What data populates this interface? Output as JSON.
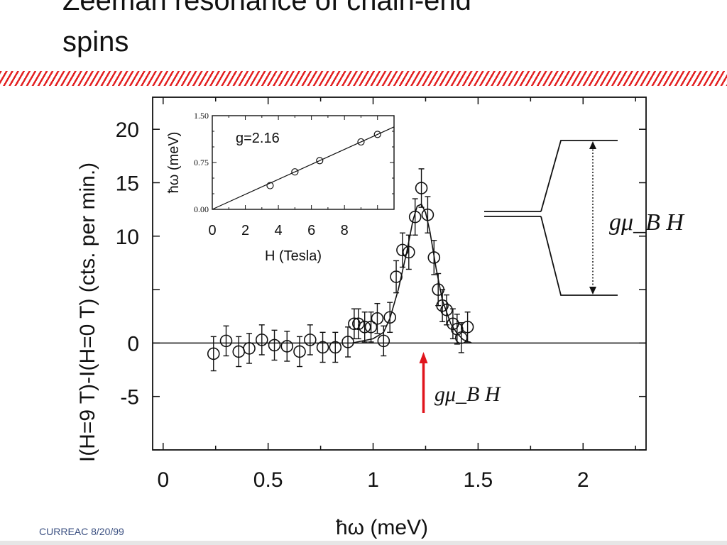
{
  "slide": {
    "title_line1": "Zeeman resonance of chain-end",
    "title_line2": "spins",
    "footer": "CURREAC 8/20/99"
  },
  "colors": {
    "hatch": "#e32121",
    "arrow": "#e0141c",
    "ink": "#111111"
  },
  "chart_data": [
    {
      "type": "scatter",
      "xlabel": "ħω    (meV)",
      "ylabel": "I(H=9 T)-I(H=0 T)   (cts. per min.)",
      "xlim": [
        -0.05,
        2.3
      ],
      "ylim": [
        -10,
        23
      ],
      "xticks": [
        0,
        0.5,
        1,
        1.5,
        2
      ],
      "xtick_labels": [
        "0",
        "0.5",
        "1",
        "1.5",
        "2"
      ],
      "yticks": [
        -5,
        0,
        10,
        15,
        20
      ],
      "ytick_labels": [
        "-5",
        "0",
        "10",
        "15",
        "20"
      ],
      "baseline": 0,
      "series": [
        {
          "style": "open-circles-with-error-bars",
          "x": [
            0.24,
            0.3,
            0.36,
            0.41,
            0.47,
            0.53,
            0.59,
            0.65,
            0.7,
            0.76,
            0.82,
            0.88,
            0.91,
            0.93,
            0.96,
            0.99,
            1.02,
            1.05,
            1.08,
            1.11,
            1.14,
            1.17,
            1.2,
            1.23,
            1.26,
            1.29,
            1.31,
            1.33,
            1.35,
            1.38,
            1.4,
            1.42,
            1.45
          ],
          "y": [
            -1,
            0.2,
            -0.8,
            -0.5,
            0.3,
            -0.2,
            -0.3,
            -0.8,
            0.3,
            -0.4,
            -0.4,
            0.1,
            1.8,
            1.8,
            1.5,
            1.5,
            2.3,
            0.2,
            2.4,
            6.2,
            8.7,
            8.5,
            11.8,
            14.5,
            12,
            8,
            5,
            3.5,
            3.1,
            1.8,
            1.3,
            0.5,
            1.5
          ],
          "error": [
            1.6,
            1.4,
            1.4,
            1.4,
            1.4,
            1.4,
            1.4,
            1.4,
            1.4,
            1.4,
            1.4,
            1.4,
            1.4,
            1.4,
            1.4,
            1.4,
            1.4,
            1.4,
            1.4,
            1.5,
            1.6,
            1.6,
            1.7,
            1.8,
            1.7,
            1.6,
            1.5,
            1.5,
            1.4,
            1.4,
            1.4,
            1.4,
            1.4
          ]
        },
        {
          "style": "line",
          "x": [
            0.9,
            1.0,
            1.05,
            1.08,
            1.12,
            1.16,
            1.19,
            1.21,
            1.23,
            1.25,
            1.27,
            1.3,
            1.33,
            1.37,
            1.4,
            1.43,
            1.47
          ],
          "y": [
            0,
            0.4,
            1,
            2.3,
            5,
            8.5,
            11.5,
            12.8,
            13,
            12.2,
            10.5,
            7,
            4,
            1.8,
            0.9,
            0.3,
            0
          ]
        }
      ],
      "annotation": {
        "arrow_x": 1.24,
        "label": "gμ_B H"
      }
    },
    {
      "type": "scatter",
      "text": "g=2.16",
      "xlabel": "H (Tesla)",
      "ylabel": "ħω (meV)",
      "xlim": [
        0,
        11
      ],
      "ylim": [
        0,
        1.5
      ],
      "xtick_labels": [
        "0",
        "2",
        "4",
        "6",
        "8"
      ],
      "ytick_labels": [
        "0.00",
        "0.75",
        "1.50"
      ],
      "series": [
        {
          "style": "open-circles",
          "x": [
            3.5,
            5,
            6.5,
            9,
            10
          ],
          "y": [
            0.38,
            0.6,
            0.78,
            1.08,
            1.2
          ]
        },
        {
          "style": "line",
          "x": [
            0,
            11
          ],
          "y": [
            0,
            1.32
          ]
        }
      ]
    }
  ],
  "diagram": {
    "label": "gμ_B H"
  }
}
